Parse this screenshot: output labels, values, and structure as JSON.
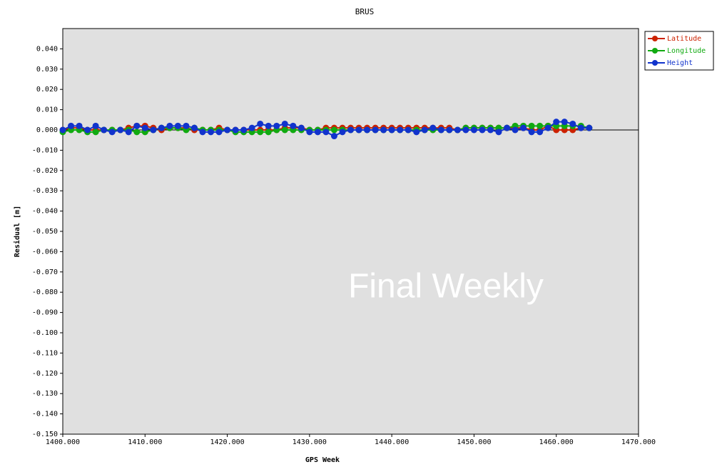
{
  "chart_data": {
    "type": "line",
    "title": "BRUS",
    "xlabel": "GPS Week",
    "ylabel": "Residual [m]",
    "watermark": "Final Weekly",
    "x": [
      1400,
      1401,
      1402,
      1403,
      1404,
      1405,
      1406,
      1407,
      1408,
      1409,
      1410,
      1411,
      1412,
      1413,
      1414,
      1415,
      1416,
      1417,
      1418,
      1419,
      1420,
      1421,
      1422,
      1423,
      1424,
      1425,
      1426,
      1427,
      1428,
      1429,
      1430,
      1431,
      1432,
      1433,
      1434,
      1435,
      1436,
      1437,
      1438,
      1439,
      1440,
      1441,
      1442,
      1443,
      1444,
      1445,
      1446,
      1447,
      1448,
      1449,
      1450,
      1451,
      1452,
      1453,
      1454,
      1455,
      1456,
      1457,
      1458,
      1459,
      1460,
      1461,
      1462,
      1463,
      1464
    ],
    "series": [
      {
        "name": "Latitude",
        "color": "#cc2200",
        "values": [
          0,
          0.001,
          0.001,
          0,
          0,
          0,
          0,
          0,
          0.001,
          0.002,
          0.002,
          0.001,
          0,
          0.001,
          0.001,
          0.001,
          0,
          0,
          0,
          0.001,
          0,
          0,
          0,
          0,
          0,
          0,
          0,
          0.001,
          0.001,
          0.001,
          0,
          0,
          0.001,
          0.001,
          0.001,
          0.001,
          0.001,
          0.001,
          0.001,
          0.001,
          0.001,
          0.001,
          0.001,
          0.001,
          0.001,
          0.001,
          0.001,
          0.001,
          0,
          0.001,
          0.001,
          0.001,
          0.001,
          0.001,
          0.001,
          0.001,
          0.001,
          0,
          0,
          0.002,
          0,
          0,
          0,
          0.001,
          0.001
        ]
      },
      {
        "name": "Longitude",
        "color": "#11aa11",
        "values": [
          -0.001,
          0,
          0,
          -0.001,
          -0.001,
          0,
          0,
          0,
          0,
          -0.001,
          -0.001,
          0,
          0.001,
          0.001,
          0.001,
          0,
          0.001,
          0,
          0,
          0,
          0,
          -0.001,
          -0.001,
          -0.001,
          -0.001,
          -0.001,
          0,
          0,
          0,
          0,
          0,
          0,
          0,
          0,
          0,
          0,
          0,
          0,
          0,
          0,
          0,
          0,
          0,
          0,
          0,
          0,
          0,
          0,
          0,
          0.001,
          0.001,
          0.001,
          0.001,
          0.001,
          0.001,
          0.002,
          0.002,
          0.002,
          0.002,
          0.002,
          0.002,
          0.002,
          0.002,
          0.002,
          0.001
        ]
      },
      {
        "name": "Height",
        "color": "#1133cc",
        "values": [
          0,
          0.002,
          0.002,
          0,
          0.002,
          0,
          -0.001,
          0,
          -0.001,
          0.002,
          0.001,
          0,
          0.001,
          0.002,
          0.002,
          0.002,
          0.001,
          -0.001,
          -0.001,
          -0.001,
          0,
          0,
          0,
          0.001,
          0.003,
          0.002,
          0.002,
          0.003,
          0.002,
          0.001,
          -0.001,
          -0.001,
          -0.001,
          -0.003,
          -0.001,
          0,
          0,
          0,
          0,
          0,
          0,
          0,
          0,
          -0.001,
          0,
          0.001,
          0,
          0,
          0,
          0,
          0,
          0,
          0,
          -0.001,
          0.001,
          0,
          0.001,
          -0.001,
          -0.001,
          0.001,
          0.004,
          0.004,
          0.003,
          0.001,
          0.001
        ]
      }
    ],
    "xlim": [
      1400,
      1470
    ],
    "xticks": [
      {
        "value": 1400,
        "label": "1400.000"
      },
      {
        "value": 1410,
        "label": "1410.000"
      },
      {
        "value": 1420,
        "label": "1420.000"
      },
      {
        "value": 1430,
        "label": "1430.000"
      },
      {
        "value": 1440,
        "label": "1440.000"
      },
      {
        "value": 1450,
        "label": "1450.000"
      },
      {
        "value": 1460,
        "label": "1460.000"
      },
      {
        "value": 1470,
        "label": "1470.000"
      }
    ],
    "ylim": [
      -0.15,
      0.05
    ],
    "yticks": [
      {
        "value": 0.04,
        "label": "0.040"
      },
      {
        "value": 0.03,
        "label": "0.030"
      },
      {
        "value": 0.02,
        "label": "0.020"
      },
      {
        "value": 0.01,
        "label": "0.010"
      },
      {
        "value": 0,
        "label": "0.000"
      },
      {
        "value": -0.01,
        "label": "-0.010"
      },
      {
        "value": -0.02,
        "label": "-0.020"
      },
      {
        "value": -0.03,
        "label": "-0.030"
      },
      {
        "value": -0.04,
        "label": "-0.040"
      },
      {
        "value": -0.05,
        "label": "-0.050"
      },
      {
        "value": -0.06,
        "label": "-0.060"
      },
      {
        "value": -0.07,
        "label": "-0.070"
      },
      {
        "value": -0.08,
        "label": "-0.080"
      },
      {
        "value": -0.09,
        "label": "-0.090"
      },
      {
        "value": -0.1,
        "label": "-0.100"
      },
      {
        "value": -0.11,
        "label": "-0.110"
      },
      {
        "value": -0.12,
        "label": "-0.120"
      },
      {
        "value": -0.13,
        "label": "-0.130"
      },
      {
        "value": -0.14,
        "label": "-0.140"
      },
      {
        "value": -0.15,
        "label": "-0.150"
      }
    ],
    "grid": false,
    "legend": "outside-top-right"
  }
}
